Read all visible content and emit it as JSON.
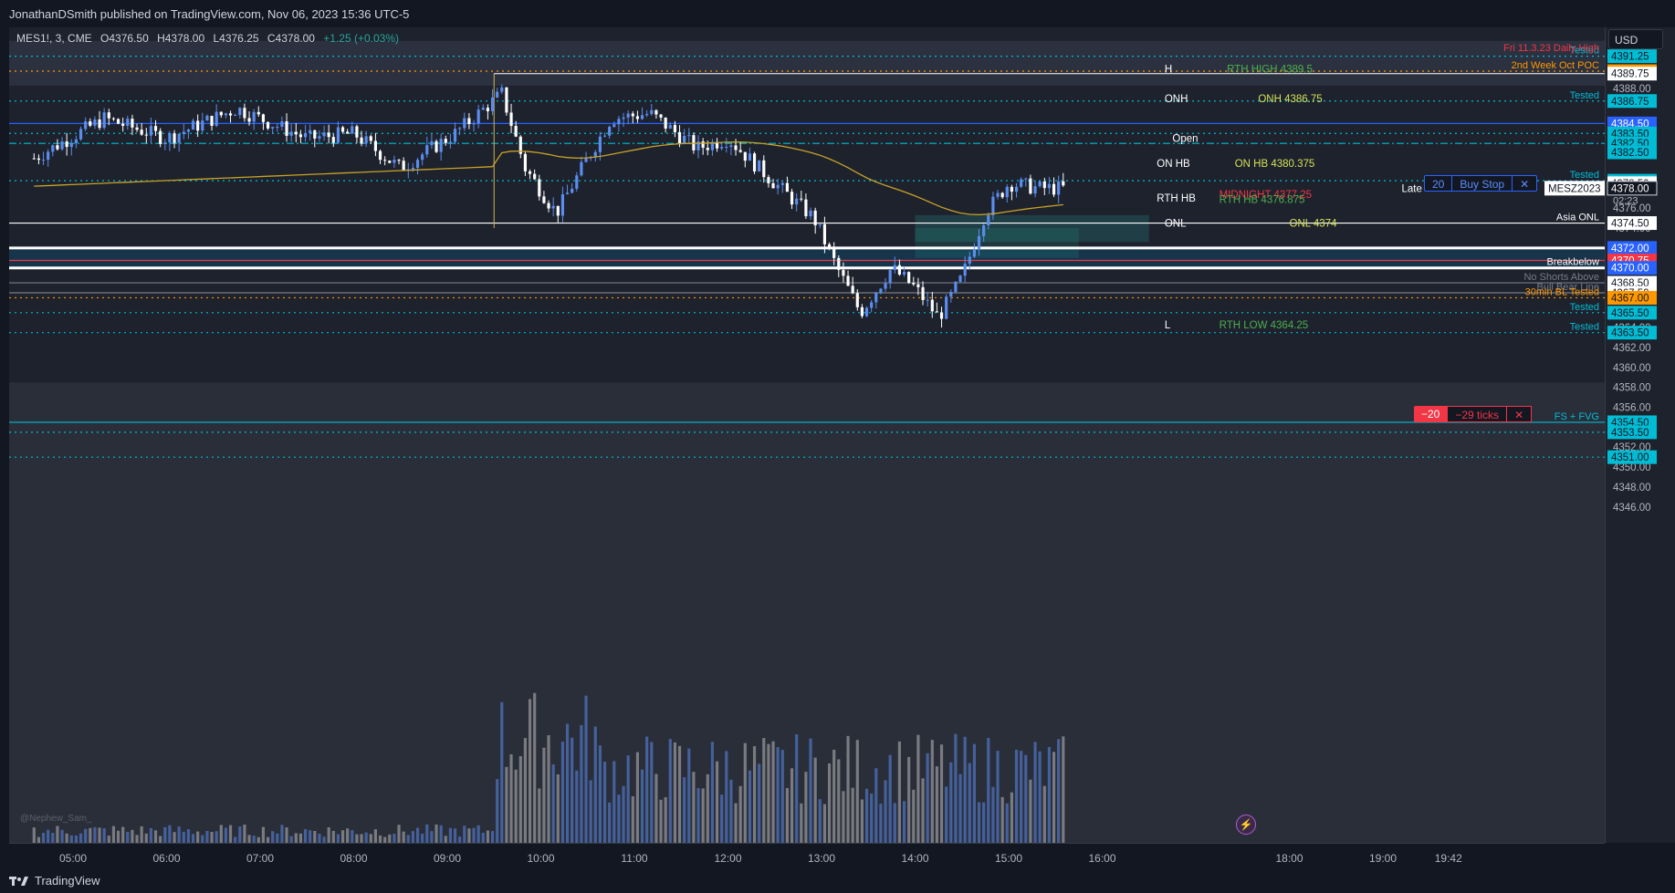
{
  "header": {
    "publisher": "JonathanDSmith published on TradingView.com, Nov 06, 2023 15:36 UTC-5"
  },
  "legend": {
    "symbol": "MES1!, 3, CME",
    "open": "O4376.50",
    "high": "H4378.00",
    "low": "L4376.25",
    "close": "C4378.00",
    "change": "+1.25 (+0.03%)"
  },
  "currency": "USD",
  "watermark": "@Nephew_Sam_",
  "footer": {
    "brand": "TradingView"
  },
  "orders": {
    "buy": {
      "qty": "20",
      "label": "Buy Stop",
      "close": "✕"
    },
    "sell": {
      "qty": "−20",
      "label": "−29 ticks",
      "close": "✕"
    }
  },
  "colors": {
    "bull": "#5b8def",
    "bear": "#ffffff",
    "tested": "#00bcd4",
    "orange": "#ff9800",
    "blue_tag": "#2962ff",
    "red_tag": "#f23645",
    "green": "#4caf50",
    "yellow": "#d4e157"
  },
  "chart_data": {
    "type": "candlestick",
    "symbol": "MES1!",
    "timeframe": "3",
    "exchange": "CME",
    "ylim": [
      4345,
      4396
    ],
    "time_range": [
      "04:35",
      "19:42"
    ],
    "time_ticks": [
      "05:00",
      "06:00",
      "07:00",
      "08:00",
      "09:00",
      "10:00",
      "11:00",
      "12:00",
      "13:00",
      "14:00",
      "15:00",
      "16:00",
      "18:00",
      "19:00",
      "19:42"
    ],
    "axis_labels": [
      "4388.00",
      "4382.00",
      "4376.00",
      "4374.00",
      "4364.00",
      "4362.00",
      "4360.00",
      "4358.00",
      "4356.00",
      "4352.00",
      "4350.00",
      "4348.00",
      "4346.00"
    ],
    "price_tags": [
      {
        "price": 4391.25,
        "label": "4391.25",
        "color": "#00bcd4"
      },
      {
        "price": 4389.75,
        "label": "4389.75",
        "color": "#ff9800"
      },
      {
        "price": 4389.5,
        "label": "4389.75",
        "color": "#ffffff"
      },
      {
        "price": 4386.75,
        "label": "4386.75",
        "color": "#00bcd4"
      },
      {
        "price": 4384.5,
        "label": "4384.50",
        "color": "#2962ff"
      },
      {
        "price": 4383.5,
        "label": "4383.50",
        "color": "#00bcd4"
      },
      {
        "price": 4382.5,
        "label": "4382.50",
        "color": "#00bcd4"
      },
      {
        "price": 4381.6,
        "label": "4382.50",
        "color": "#00bcd4"
      },
      {
        "price": 4378.75,
        "label": "4378.75",
        "color": "#00bcd4"
      },
      {
        "price": 4378.5,
        "label": "4378.50",
        "color": "#ffffff"
      },
      {
        "price": 4378.0,
        "label": "4378.00",
        "color": "#131722"
      },
      {
        "price": 4374.5,
        "label": "4374.50",
        "color": "#ffffff"
      },
      {
        "price": 4372.0,
        "label": "4372.00",
        "color": "#2962ff"
      },
      {
        "price": 4370.75,
        "label": "4370.75",
        "color": "#f23645"
      },
      {
        "price": 4370.0,
        "label": "4370.00",
        "color": "#2962ff"
      },
      {
        "price": 4368.5,
        "label": "4368.50",
        "color": "#ffffff"
      },
      {
        "price": 4367.5,
        "label": "4367.50",
        "color": "#ffffff"
      },
      {
        "price": 4367.0,
        "label": "4367.00",
        "color": "#ff9800"
      },
      {
        "price": 4365.5,
        "label": "4365.50",
        "color": "#00bcd4"
      },
      {
        "price": 4363.5,
        "label": "4363.50",
        "color": "#00bcd4"
      },
      {
        "price": 4354.5,
        "label": "4354.50",
        "color": "#00bcd4"
      },
      {
        "price": 4353.5,
        "label": "4353.50",
        "color": "#00bcd4"
      },
      {
        "price": 4351.0,
        "label": "4351.00",
        "color": "#00bcd4"
      }
    ],
    "countdown": "02:23",
    "contract_tag": "MESZ2023",
    "levels": [
      {
        "price": 4391.25,
        "label": "Tested",
        "color": "#00bcd4",
        "style": "dotted"
      },
      {
        "price": 4391.5,
        "label": "Fri 11.3.23 Daily High",
        "color": "#f23645",
        "style": "none"
      },
      {
        "price": 4389.75,
        "label": "2nd Week Oct POC",
        "color": "#ff9800",
        "style": "dotted"
      },
      {
        "price": 4386.75,
        "label": "Tested",
        "color": "#00bcd4",
        "style": "dotted"
      },
      {
        "price": 4384.5,
        "label": "",
        "color": "#2962ff",
        "style": "solid"
      },
      {
        "price": 4383.5,
        "label": "",
        "color": "#00bcd4",
        "style": "dotted"
      },
      {
        "price": 4382.5,
        "label": "",
        "color": "#00bcd4",
        "style": "dashdot"
      },
      {
        "price": 4378.75,
        "label": "Tested",
        "color": "#00bcd4",
        "style": "dotted"
      },
      {
        "price": 4374.5,
        "label": "Asia ONL",
        "color": "#ffffff",
        "style": "solid"
      },
      {
        "price": 4372.0,
        "label": "",
        "color": "#ffffff",
        "style": "thick"
      },
      {
        "price": 4370.75,
        "label": "",
        "color": "#f23645",
        "style": "solid"
      },
      {
        "price": 4370.0,
        "label": "Breakbelow",
        "color": "#ffffff",
        "style": "thick"
      },
      {
        "price": 4368.5,
        "label": "No Shorts Above",
        "color": "#787b86",
        "style": "solid"
      },
      {
        "price": 4367.5,
        "label": "Bull Bear Line",
        "color": "#787b86",
        "style": "solid"
      },
      {
        "price": 4367.0,
        "label": "30min BL Tested",
        "color": "#ff9800",
        "style": "dotted"
      },
      {
        "price": 4365.5,
        "label": "Tested",
        "color": "#00bcd4",
        "style": "dotted"
      },
      {
        "price": 4363.5,
        "label": "Tested",
        "color": "#00bcd4",
        "style": "dotted"
      },
      {
        "price": 4354.5,
        "label": "FS + FVG",
        "color": "#00bcd4",
        "style": "solid"
      },
      {
        "price": 4353.5,
        "label": "",
        "color": "#00bcd4",
        "style": "dotted"
      },
      {
        "price": 4351.0,
        "label": "",
        "color": "#00bcd4",
        "style": "dotted"
      }
    ],
    "annotations": [
      {
        "text": "H",
        "price": 4390.0,
        "time": "16:40",
        "color": "#ffffff"
      },
      {
        "text": "RTH HIGH 4389.5",
        "price": 4390.0,
        "time": "17:20",
        "color": "#4caf50"
      },
      {
        "text": "ONH",
        "price": 4387.0,
        "time": "16:40",
        "color": "#ffffff"
      },
      {
        "text": "ONH 4386.75",
        "price": 4387.0,
        "time": "17:40",
        "color": "#d4e157"
      },
      {
        "text": "Open",
        "price": 4383.0,
        "time": "16:45",
        "color": "#ffffff"
      },
      {
        "text": "ON HB",
        "price": 4380.5,
        "time": "16:35",
        "color": "#ffffff"
      },
      {
        "text": "ON HB 4380.375",
        "price": 4380.5,
        "time": "17:25",
        "color": "#d4e157"
      },
      {
        "text": "MIDNIGHT 4377.25",
        "price": 4377.4,
        "time": "17:15",
        "color": "#f23645"
      },
      {
        "text": "RTH HB",
        "price": 4377.0,
        "time": "16:35",
        "color": "#ffffff"
      },
      {
        "text": "RTH HB 4376.875",
        "price": 4376.9,
        "time": "17:15",
        "color": "#4caf50"
      },
      {
        "text": "ONL",
        "price": 4374.5,
        "time": "16:40",
        "color": "#ffffff"
      },
      {
        "text": "ONL 4374",
        "price": 4374.5,
        "time": "18:00",
        "color": "#d4e157"
      },
      {
        "text": "L",
        "price": 4364.3,
        "time": "16:40",
        "color": "#ffffff"
      },
      {
        "text": "RTH LOW 4364.25",
        "price": 4364.3,
        "time": "17:15",
        "color": "#4caf50"
      },
      {
        "text": "Late",
        "price": 4378.0,
        "time": "19:12",
        "color": "#ffffff"
      }
    ]
  }
}
